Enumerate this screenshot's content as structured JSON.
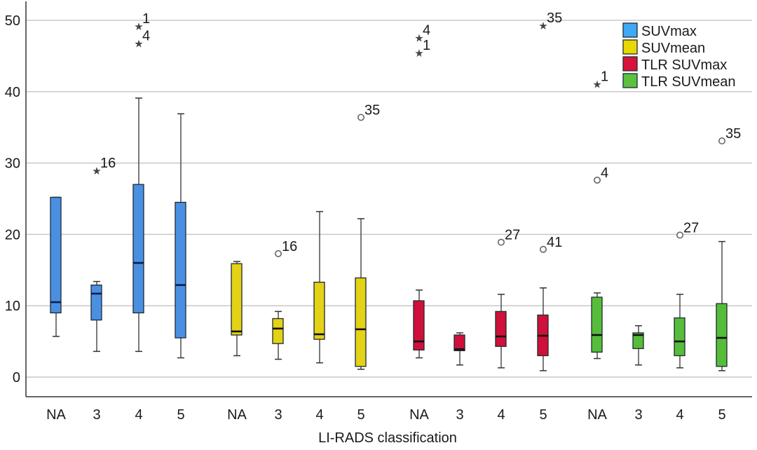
{
  "chart_data": {
    "type": "boxplot",
    "title": "",
    "xlabel": "LI-RADS classification",
    "ylabel": "",
    "ylim": [
      -2.7,
      52.5
    ],
    "yticks": [
      0,
      10,
      20,
      30,
      40,
      50
    ],
    "grid": true,
    "legend_position": "top-right",
    "categories": [
      "NA",
      "3",
      "4",
      "5"
    ],
    "series": [
      {
        "name": "SUVmax",
        "color": "#4a90e2",
        "legend_color": "#3fa9f5",
        "boxes": [
          {
            "category": "NA",
            "whisker_low": 5.7,
            "q1": 9.0,
            "median": 10.5,
            "q3": 25.2,
            "whisker_high": 25.2,
            "outliers": []
          },
          {
            "category": "3",
            "whisker_low": 3.6,
            "q1": 8.0,
            "median": 11.7,
            "q3": 12.9,
            "whisker_high": 13.4,
            "outliers": [
              {
                "value": 29.0,
                "label": "16",
                "kind": "extreme"
              }
            ]
          },
          {
            "category": "4",
            "whisker_low": 3.6,
            "q1": 9.0,
            "median": 16.0,
            "q3": 27.0,
            "whisker_high": 39.1,
            "outliers": [
              {
                "value": 49.2,
                "label": "1",
                "kind": "extreme"
              },
              {
                "value": 46.8,
                "label": "4",
                "kind": "extreme"
              }
            ]
          },
          {
            "category": "5",
            "whisker_low": 2.7,
            "q1": 5.5,
            "median": 12.9,
            "q3": 24.5,
            "whisker_high": 36.9,
            "outliers": []
          }
        ]
      },
      {
        "name": "SUVmean",
        "color": "#e3d215",
        "legend_color": "#e9d800",
        "boxes": [
          {
            "category": "NA",
            "whisker_low": 3.0,
            "q1": 5.9,
            "median": 6.4,
            "q3": 15.9,
            "whisker_high": 16.2,
            "outliers": []
          },
          {
            "category": "3",
            "whisker_low": 2.5,
            "q1": 4.7,
            "median": 6.8,
            "q3": 8.2,
            "whisker_high": 9.2,
            "outliers": [
              {
                "value": 17.3,
                "label": "16",
                "kind": "outlier"
              }
            ]
          },
          {
            "category": "4",
            "whisker_low": 2.0,
            "q1": 5.3,
            "median": 6.0,
            "q3": 13.3,
            "whisker_high": 23.2,
            "outliers": []
          },
          {
            "category": "5",
            "whisker_low": 1.1,
            "q1": 1.5,
            "median": 6.7,
            "q3": 13.9,
            "whisker_high": 22.2,
            "outliers": [
              {
                "value": 36.4,
                "label": "35",
                "kind": "outlier"
              }
            ]
          }
        ]
      },
      {
        "name": "TLR SUVmax",
        "color": "#d0103a",
        "legend_color": "#d8123c",
        "boxes": [
          {
            "category": "NA",
            "whisker_low": 2.7,
            "q1": 3.8,
            "median": 5.0,
            "q3": 10.7,
            "whisker_high": 12.2,
            "outliers": [
              {
                "value": 47.6,
                "label": "4",
                "kind": "extreme"
              },
              {
                "value": 45.5,
                "label": "1",
                "kind": "extreme"
              }
            ]
          },
          {
            "category": "3",
            "whisker_low": 1.7,
            "q1": 3.7,
            "median": 3.9,
            "q3": 5.9,
            "whisker_high": 6.2,
            "outliers": []
          },
          {
            "category": "4",
            "whisker_low": 1.3,
            "q1": 4.3,
            "median": 5.7,
            "q3": 9.2,
            "whisker_high": 11.6,
            "outliers": [
              {
                "value": 18.9,
                "label": "27",
                "kind": "outlier"
              }
            ]
          },
          {
            "category": "5",
            "whisker_low": 0.9,
            "q1": 3.0,
            "median": 5.8,
            "q3": 8.7,
            "whisker_high": 12.5,
            "outliers": [
              {
                "value": 17.9,
                "label": "41",
                "kind": "outlier"
              },
              {
                "value": 49.3,
                "label": "35",
                "kind": "extreme"
              }
            ]
          }
        ]
      },
      {
        "name": "TLR SUVmean",
        "color": "#56bd3a",
        "legend_color": "#5ac23e",
        "boxes": [
          {
            "category": "NA",
            "whisker_low": 2.6,
            "q1": 3.5,
            "median": 5.9,
            "q3": 11.2,
            "whisker_high": 11.8,
            "outliers": [
              {
                "value": 41.1,
                "label": "1",
                "kind": "extreme"
              },
              {
                "value": 27.6,
                "label": "4",
                "kind": "outlier"
              }
            ]
          },
          {
            "category": "3",
            "whisker_low": 1.7,
            "q1": 4.0,
            "median": 5.9,
            "q3": 6.2,
            "whisker_high": 7.2,
            "outliers": []
          },
          {
            "category": "4",
            "whisker_low": 1.3,
            "q1": 3.0,
            "median": 5.0,
            "q3": 8.3,
            "whisker_high": 11.6,
            "outliers": [
              {
                "value": 19.9,
                "label": "27",
                "kind": "outlier"
              }
            ]
          },
          {
            "category": "5",
            "whisker_low": 0.9,
            "q1": 1.5,
            "median": 5.5,
            "q3": 10.3,
            "whisker_high": 19.0,
            "outliers": [
              {
                "value": 33.1,
                "label": "35",
                "kind": "outlier"
              }
            ]
          }
        ]
      }
    ]
  }
}
